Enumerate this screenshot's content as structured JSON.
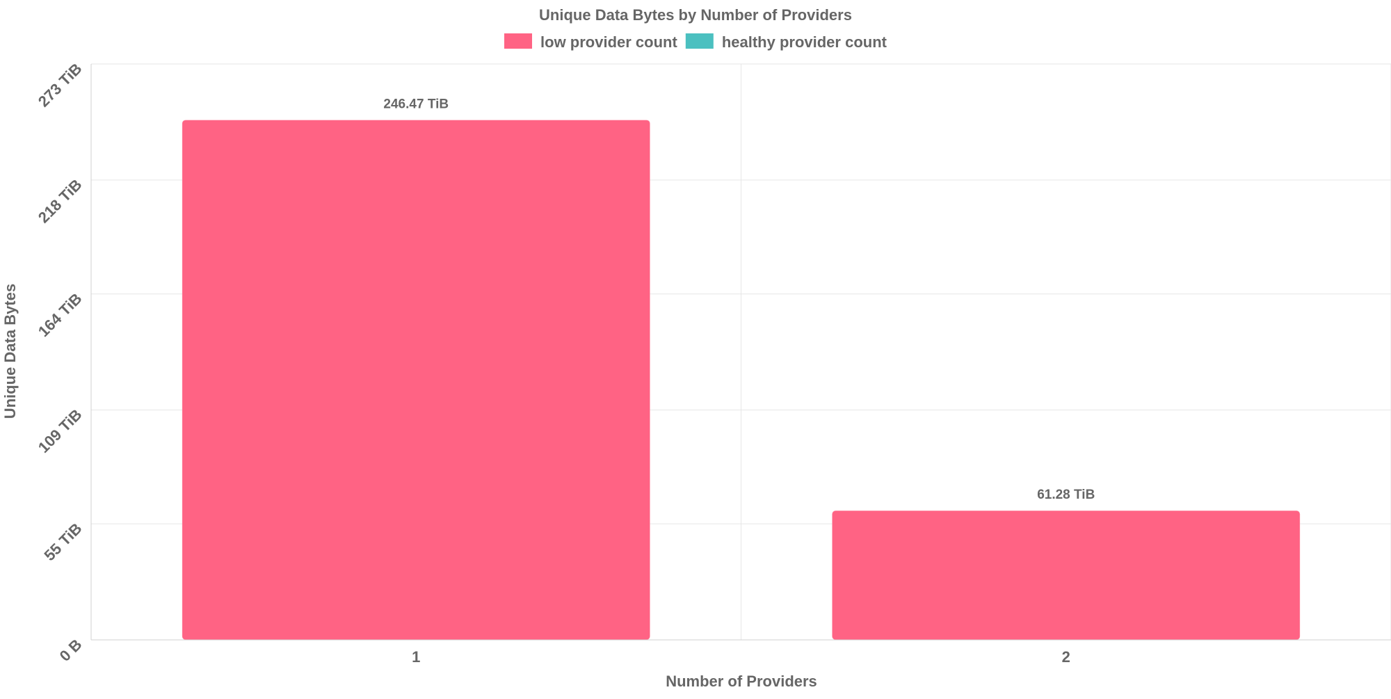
{
  "chart_data": {
    "type": "bar",
    "title": "Unique Data Bytes by Number of Providers",
    "xlabel": "Number of Providers",
    "ylabel": "Unique Data Bytes",
    "categories": [
      "1",
      "2"
    ],
    "series": [
      {
        "name": "low provider count",
        "color": "#ff6384",
        "values": [
          246.47,
          61.28
        ]
      },
      {
        "name": "healthy provider count",
        "color": "#4bc0c0",
        "values": [
          0,
          0
        ]
      }
    ],
    "data_labels": [
      "246.47 TiB",
      "61.28 TiB"
    ],
    "y_unit": "TiB",
    "ylim": [
      0,
      273
    ],
    "yticks": [
      {
        "value": 0,
        "label": "0 B"
      },
      {
        "value": 55,
        "label": "55 TiB"
      },
      {
        "value": 109,
        "label": "109 TiB"
      },
      {
        "value": 164,
        "label": "164 TiB"
      },
      {
        "value": 218,
        "label": "218 TiB"
      },
      {
        "value": 273,
        "label": "273 TiB"
      }
    ],
    "grid": true,
    "legend_position": "top"
  }
}
